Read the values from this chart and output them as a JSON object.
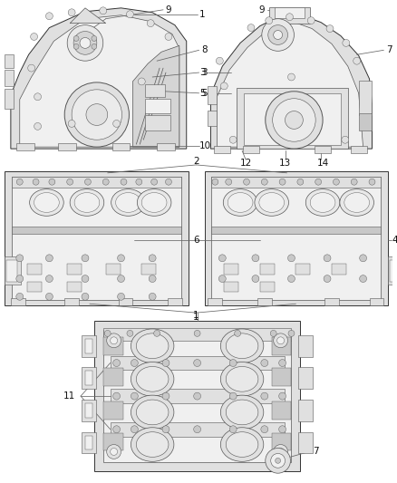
{
  "background_color": "#ffffff",
  "lc": "#555555",
  "lc_dark": "#333333",
  "fc_light": "#f0f0f0",
  "fc_mid": "#e0e0e0",
  "fc_dark": "#c8c8c8",
  "cc": "#666666",
  "fig_width": 4.38,
  "fig_height": 5.33,
  "dpi": 100
}
